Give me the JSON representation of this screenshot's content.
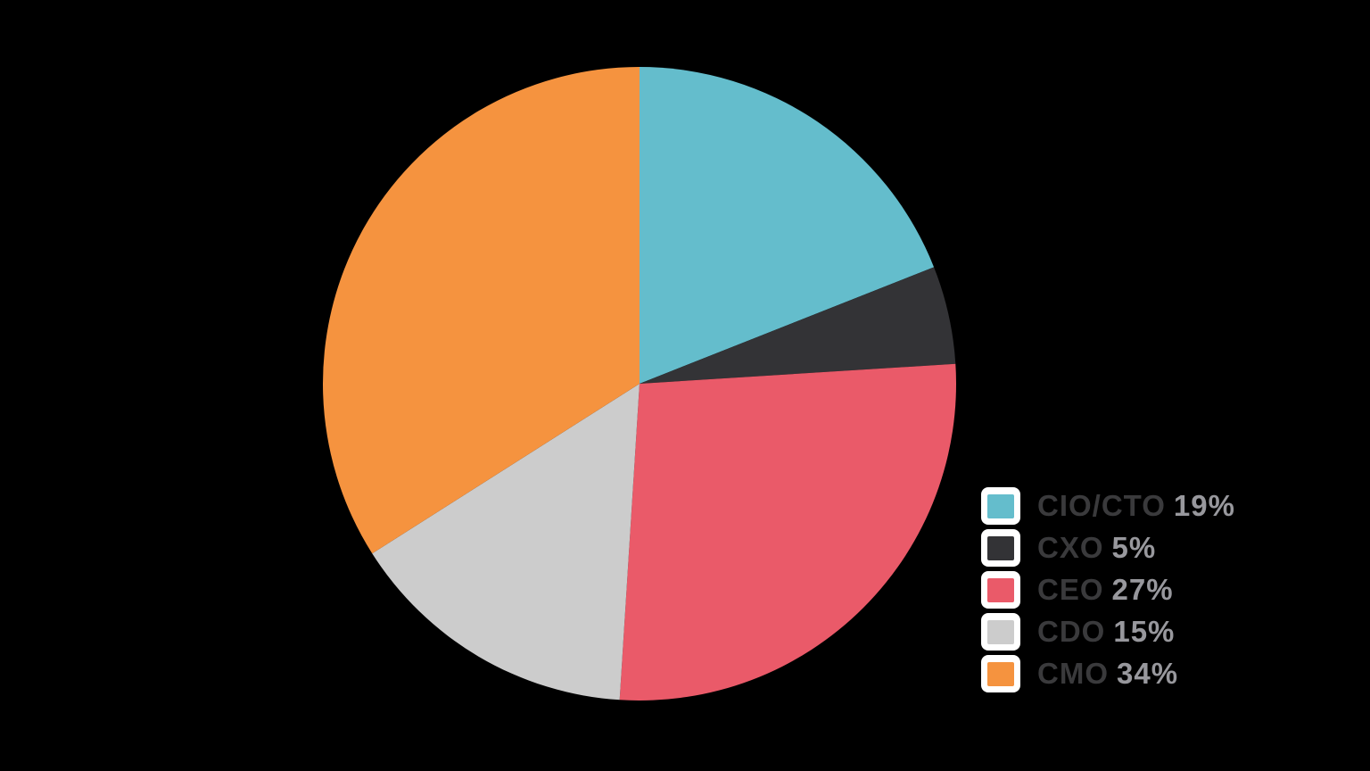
{
  "background_color": "#000000",
  "chart_data": {
    "type": "pie",
    "categories": [
      "CIO/CTO",
      "CXO",
      "CEO",
      "CDO",
      "CMO"
    ],
    "values": [
      19,
      5,
      27,
      15,
      34
    ],
    "unit": "%",
    "colors": [
      "#64bdcc",
      "#333336",
      "#ea5a69",
      "#cccccc",
      "#f5933f"
    ],
    "start_angle_deg": 0,
    "direction": "clockwise",
    "title": "",
    "legend_position": "bottom-right",
    "legend": [
      {
        "label": "CIO/CTO",
        "value_text": "19%"
      },
      {
        "label": "CXO",
        "value_text": "5%"
      },
      {
        "label": "CEO",
        "value_text": "27%"
      },
      {
        "label": "CDO",
        "value_text": "15%"
      },
      {
        "label": "CMO",
        "value_text": "34%"
      }
    ]
  },
  "legend_style": {
    "label_color": "#3a3a3c",
    "value_color": "#98989d",
    "swatch_background": "#ffffff"
  }
}
